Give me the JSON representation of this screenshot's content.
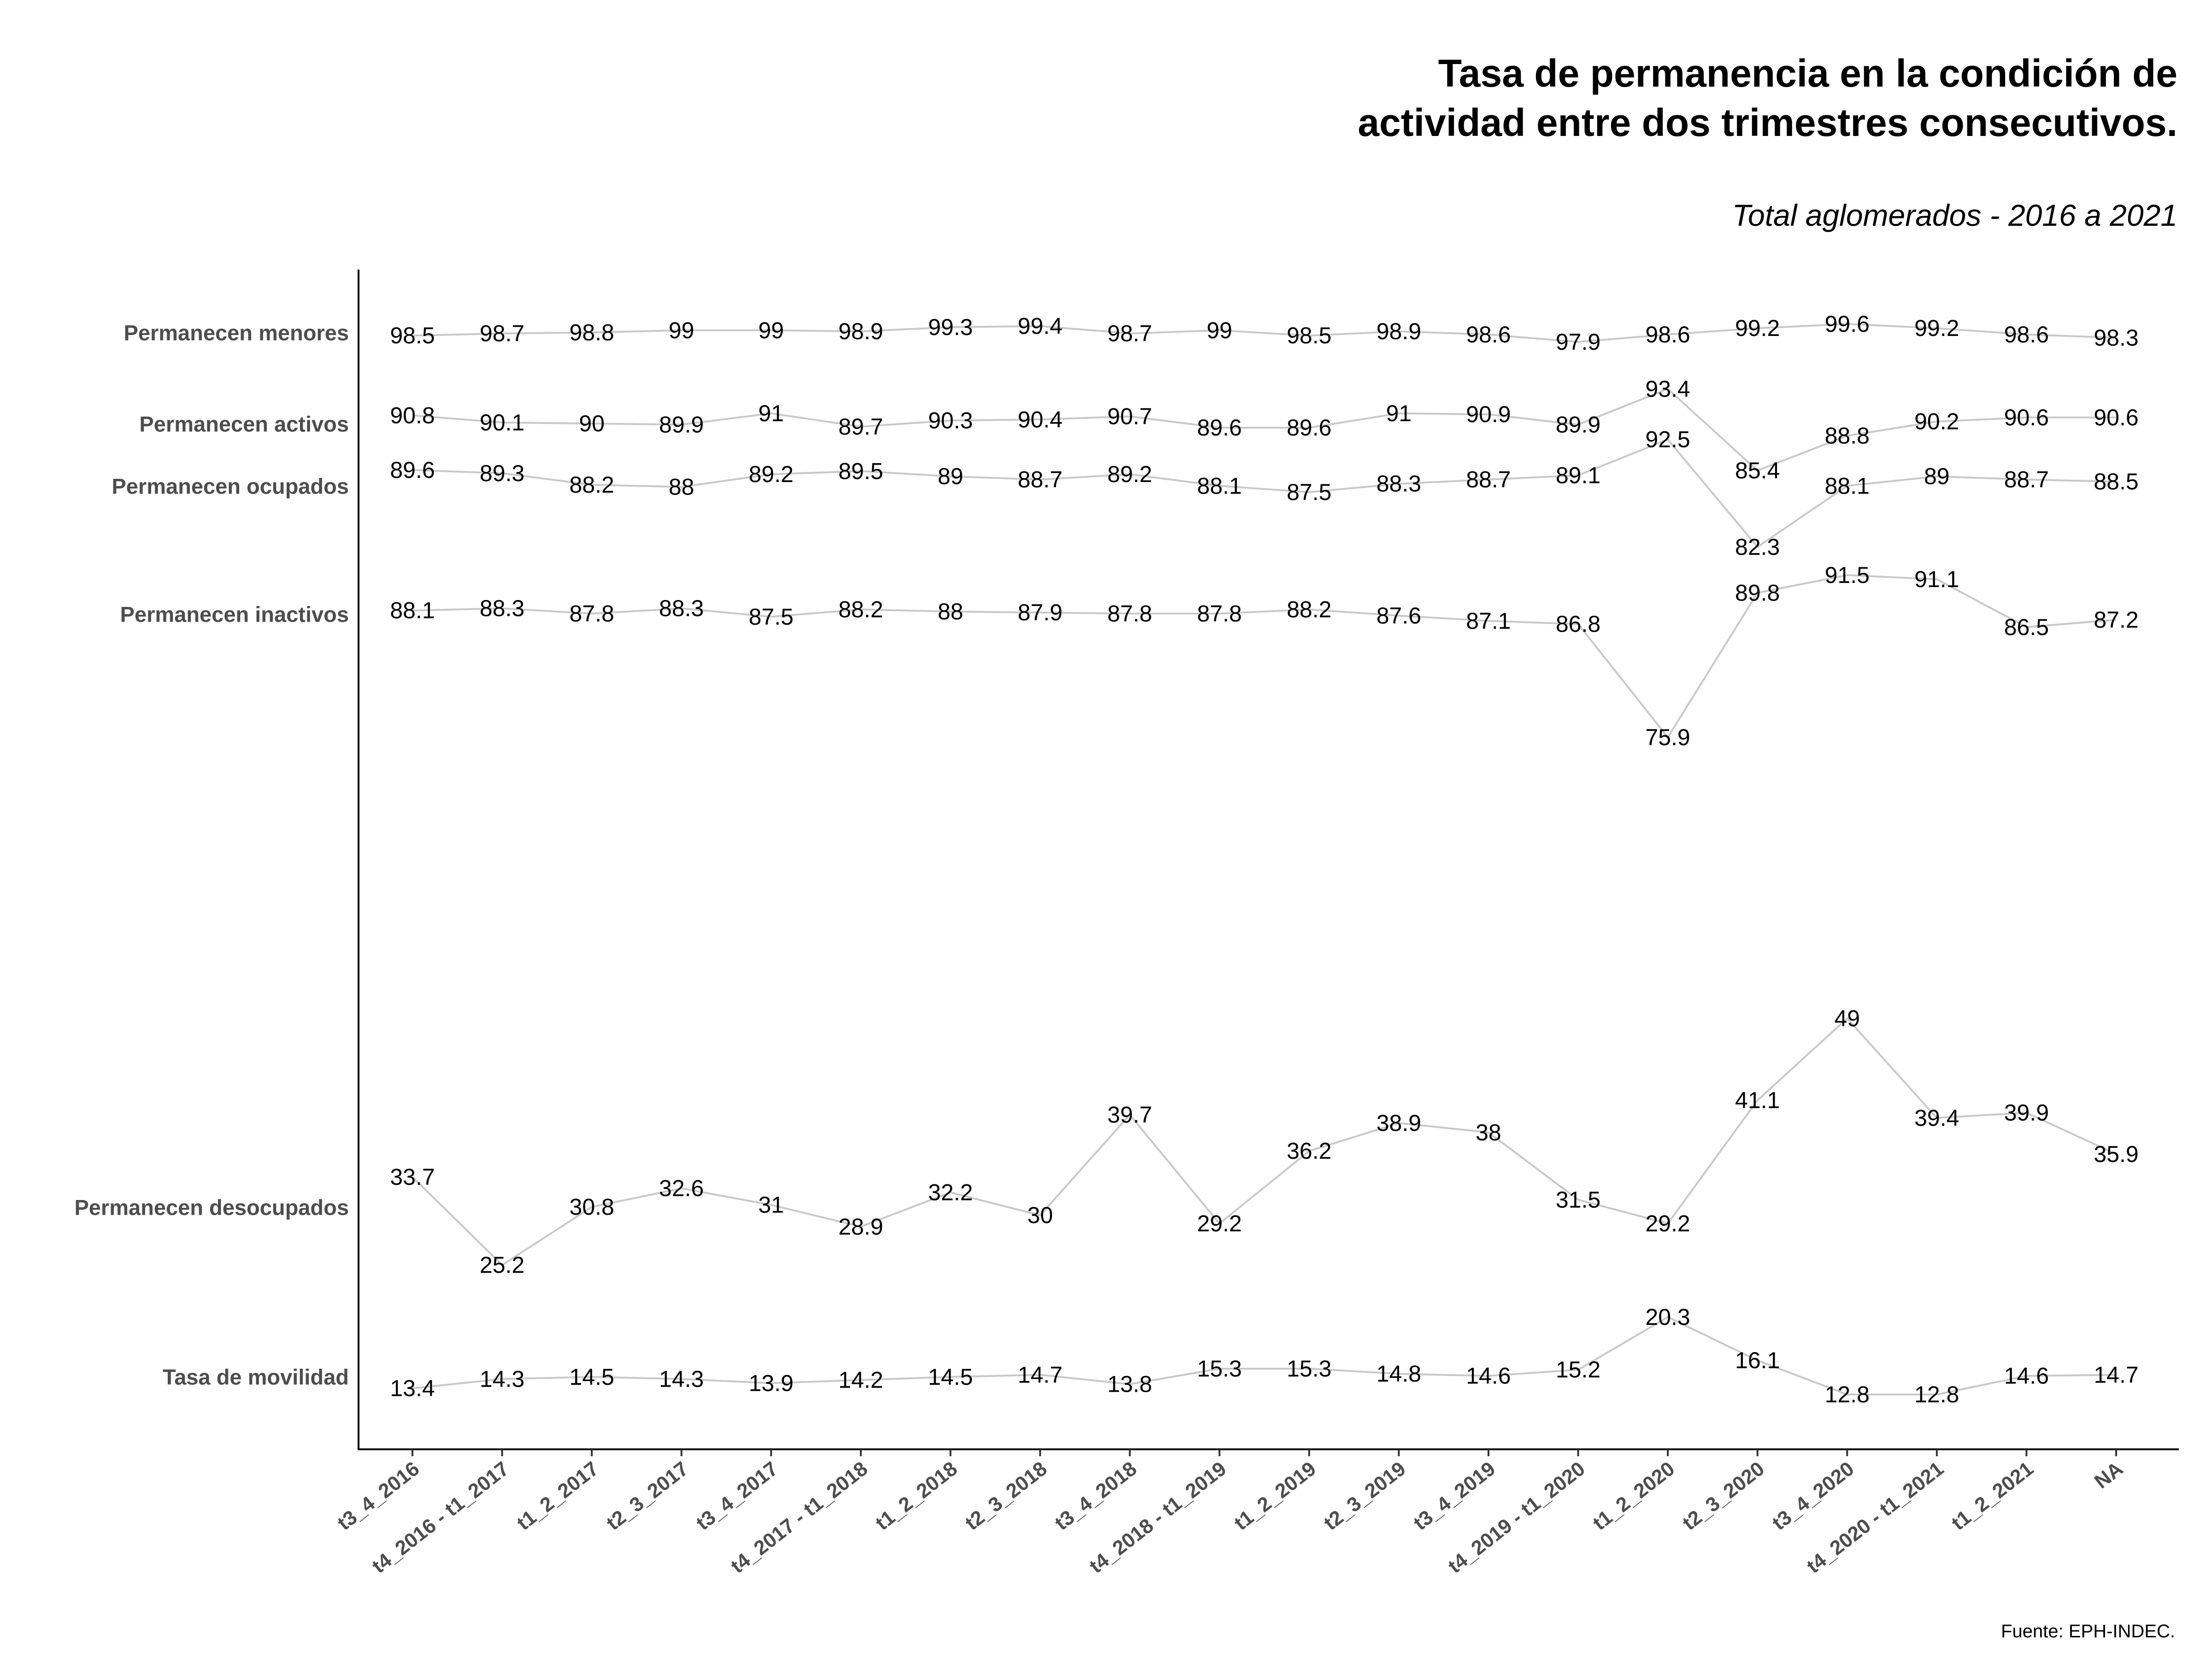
{
  "chart_data": {
    "type": "line",
    "title": [
      "Tasa de permanencia en la condición de",
      "actividad entre dos trimestres consecutivos."
    ],
    "subtitle": "Total aglomerados - 2016 a 2021",
    "caption": "Fuente: EPH-INDEC.",
    "categories": [
      "t3_4_2016",
      "t4_2016 - t1_2017",
      "t1_2_2017",
      "t2_3_2017",
      "t3_4_2017",
      "t4_2017 - t1_2018",
      "t1_2_2018",
      "t2_3_2018",
      "t3_4_2018",
      "t4_2018 - t1_2019",
      "t1_2_2019",
      "t2_3_2019",
      "t3_4_2019",
      "t4_2019 - t1_2020",
      "t1_2_2020",
      "t2_3_2020",
      "t3_4_2020",
      "t4_2020 - t1_2021",
      "t1_2_2021",
      "NA"
    ],
    "series": [
      {
        "name": "Permanecen menores",
        "values": [
          98.5,
          98.7,
          98.8,
          99,
          99,
          98.9,
          99.3,
          99.4,
          98.7,
          99,
          98.5,
          98.9,
          98.6,
          97.9,
          98.6,
          99.2,
          99.6,
          99.2,
          98.6,
          98.3
        ]
      },
      {
        "name": "Permanecen activos",
        "values": [
          90.8,
          90.1,
          90,
          89.9,
          91,
          89.7,
          90.3,
          90.4,
          90.7,
          89.6,
          89.6,
          91,
          90.9,
          89.9,
          93.4,
          85.4,
          88.8,
          90.2,
          90.6,
          90.6
        ]
      },
      {
        "name": "Permanecen ocupados",
        "values": [
          89.6,
          89.3,
          88.2,
          88,
          89.2,
          89.5,
          89,
          88.7,
          89.2,
          88.1,
          87.5,
          88.3,
          88.7,
          89.1,
          92.5,
          82.3,
          88.1,
          89,
          88.7,
          88.5
        ]
      },
      {
        "name": "Permanecen inactivos",
        "values": [
          88.1,
          88.3,
          87.8,
          88.3,
          87.5,
          88.2,
          88,
          87.9,
          87.8,
          87.8,
          88.2,
          87.6,
          87.1,
          86.8,
          75.9,
          89.8,
          91.5,
          91.1,
          86.5,
          87.2
        ]
      },
      {
        "name": "Permanecen desocupados",
        "values": [
          33.7,
          25.2,
          30.8,
          32.6,
          31,
          28.9,
          32.2,
          30,
          39.7,
          29.2,
          36.2,
          38.9,
          38,
          31.5,
          29.2,
          41.1,
          49,
          39.4,
          39.9,
          35.9
        ]
      },
      {
        "name": "Tasa de movilidad",
        "values": [
          13.4,
          14.3,
          14.5,
          14.3,
          13.9,
          14.2,
          14.5,
          14.7,
          13.8,
          15.3,
          15.3,
          14.8,
          14.6,
          15.2,
          20.3,
          16.1,
          12.8,
          12.8,
          14.6,
          14.7
        ]
      }
    ],
    "grid": false,
    "legend": "none"
  }
}
